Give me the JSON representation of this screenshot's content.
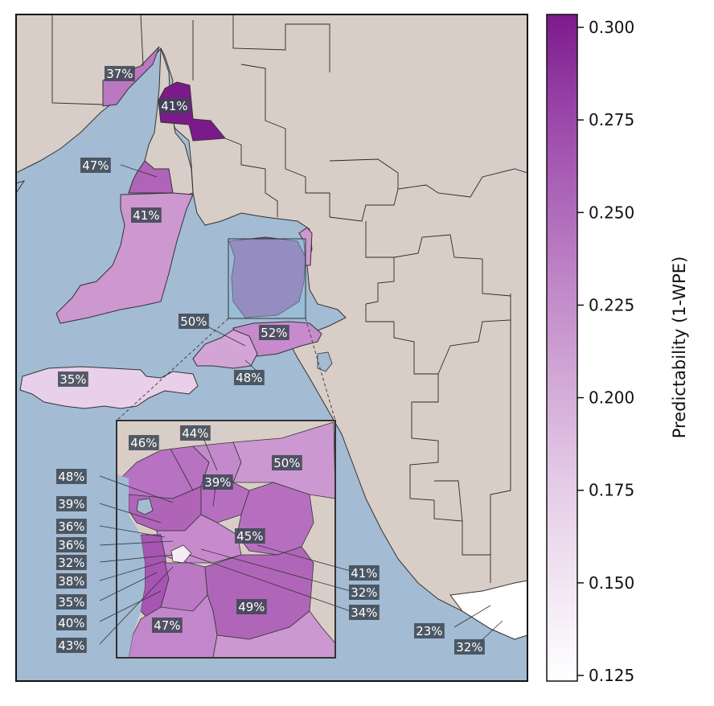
{
  "colorbar": {
    "label": "Predictability (1-WPE)",
    "ticks": [
      "0.300",
      "0.275",
      "0.250",
      "0.225",
      "0.200",
      "0.175",
      "0.150",
      "0.125"
    ],
    "range": [
      0.125,
      0.305
    ],
    "colormap": "Purples",
    "color_low": "#ffffff",
    "color_high": "#7c1a8c"
  },
  "colors": {
    "ocean": "#a3bbd3",
    "land": "#d9cdc7",
    "boundary": "#222222"
  },
  "regions": [
    {
      "id": "r37",
      "label": "37%",
      "value": 0.37
    },
    {
      "id": "r41-north",
      "label": "41%",
      "value": 0.41
    },
    {
      "id": "r47-yorke-north",
      "label": "47%",
      "value": 0.47
    },
    {
      "id": "r41-yorke",
      "label": "41%",
      "value": 0.41
    },
    {
      "id": "r50-fleurieu",
      "label": "50%",
      "value": 0.5
    },
    {
      "id": "r52",
      "label": "52%",
      "value": 0.52
    },
    {
      "id": "r48-fleurieu",
      "label": "48%",
      "value": 0.48
    },
    {
      "id": "r35-kangaroo",
      "label": "35%",
      "value": 0.35
    },
    {
      "id": "r23",
      "label": "23%",
      "value": 0.23
    },
    {
      "id": "r32-southeast",
      "label": "32%",
      "value": 0.32
    }
  ],
  "inset": {
    "regions": [
      {
        "label": "46%"
      },
      {
        "label": "44%"
      },
      {
        "label": "50%"
      },
      {
        "label": "39%"
      },
      {
        "label": "48%"
      },
      {
        "label": "39%"
      },
      {
        "label": "36%"
      },
      {
        "label": "45%"
      },
      {
        "label": "36%"
      },
      {
        "label": "32%"
      },
      {
        "label": "38%"
      },
      {
        "label": "35%"
      },
      {
        "label": "40%"
      },
      {
        "label": "43%"
      },
      {
        "label": "47%"
      },
      {
        "label": "49%"
      },
      {
        "label": "41%"
      },
      {
        "label": "32%"
      },
      {
        "label": "34%"
      }
    ]
  }
}
